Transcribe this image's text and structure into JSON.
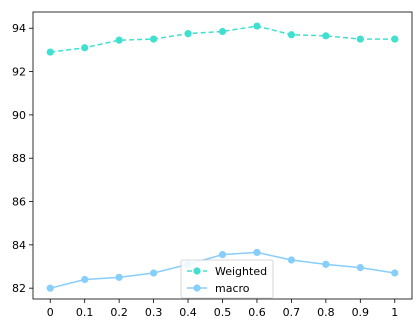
{
  "chart_data": {
    "type": "line",
    "title": "",
    "xlabel": "",
    "ylabel": "",
    "x": [
      0,
      0.1,
      0.2,
      0.3,
      0.4,
      0.5,
      0.6,
      0.7,
      0.8,
      0.9,
      1
    ],
    "x_tick_labels": [
      "0",
      "0.1",
      "0.2",
      "0.3",
      "0.4",
      "0.5",
      "0.6",
      "0.7",
      "0.8",
      "0.9",
      "1"
    ],
    "y_ticks": [
      82,
      84,
      86,
      88,
      90,
      92,
      94
    ],
    "xlim": [
      -0.05,
      1.05
    ],
    "ylim": [
      81.5,
      94.75
    ],
    "grid": false,
    "legend_position": "lower-center",
    "series": [
      {
        "name": "Weighted",
        "color": "#40e0d0",
        "line_style": "dashed",
        "marker": "circle",
        "values": [
          92.9,
          93.1,
          93.45,
          93.5,
          93.75,
          93.85,
          94.1,
          93.7,
          93.65,
          93.5,
          93.5
        ]
      },
      {
        "name": "macro",
        "color": "#87cefa",
        "line_style": "solid",
        "marker": "circle",
        "values": [
          82.0,
          82.4,
          82.5,
          82.7,
          83.1,
          83.55,
          83.65,
          83.3,
          83.1,
          82.95,
          82.7
        ]
      }
    ]
  }
}
